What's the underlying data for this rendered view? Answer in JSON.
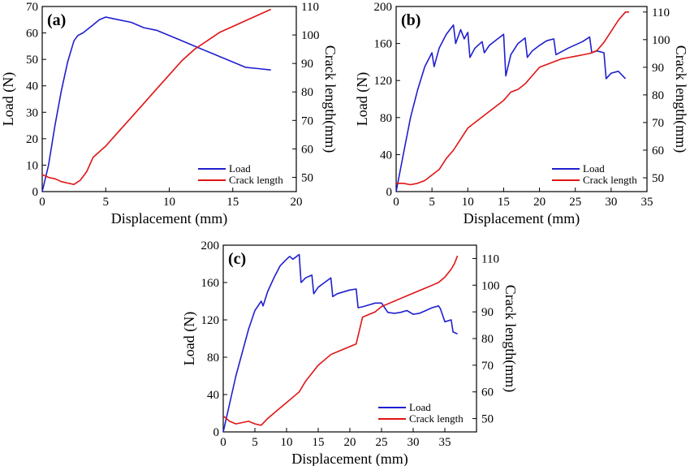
{
  "colors": {
    "load": "#1f1fcf",
    "crack": "#e01414",
    "axis": "#000000"
  },
  "chart_data": [
    {
      "panel": "(a)",
      "type": "line",
      "xlabel": "Displacement (mm)",
      "ylabel": "Load (N)",
      "y2label": "Crack length(mm)",
      "xlim": [
        0,
        20
      ],
      "xticks": [
        0,
        5,
        10,
        15,
        20
      ],
      "ylim": [
        0,
        70
      ],
      "yticks": [
        0,
        10,
        20,
        30,
        40,
        50,
        60,
        70
      ],
      "y2lim": [
        45,
        110
      ],
      "y2ticks": [
        50,
        60,
        70,
        80,
        90,
        100,
        110
      ],
      "legend": "bottom-right",
      "series": [
        {
          "name": "Load",
          "axis": "left",
          "color": "#1f1fcf",
          "x": [
            0,
            0.5,
            1,
            1.5,
            2,
            2.5,
            2.8,
            3.2,
            4,
            4.5,
            5,
            5.5,
            6,
            7,
            8,
            9,
            10,
            11,
            12,
            13,
            14,
            15,
            16,
            17,
            18
          ],
          "y": [
            0,
            10,
            25,
            38,
            49,
            57,
            59,
            60,
            63,
            65,
            66,
            65.5,
            65,
            64,
            62,
            61,
            59,
            57,
            55,
            53,
            51,
            49,
            47,
            46.5,
            46
          ]
        },
        {
          "name": "Crack length",
          "axis": "right",
          "color": "#e01414",
          "x": [
            0,
            0.5,
            1,
            1.5,
            2,
            2.5,
            3,
            3.5,
            4,
            5,
            6,
            7,
            8,
            9,
            10,
            11,
            12,
            13,
            14,
            15,
            16,
            17,
            18
          ],
          "y": [
            51,
            50,
            49.5,
            48.5,
            48,
            47.5,
            49,
            52,
            57,
            61,
            66,
            71,
            76,
            81,
            86,
            91,
            95,
            98,
            101,
            103,
            105,
            107,
            109
          ]
        }
      ]
    },
    {
      "panel": "(b)",
      "type": "line",
      "xlabel": "Displacement (mm)",
      "ylabel": "Load (N)",
      "y2label": "Crack length(mm)",
      "xlim": [
        0,
        35
      ],
      "xticks": [
        0,
        5,
        10,
        15,
        20,
        25,
        30,
        35
      ],
      "ylim": [
        0,
        200
      ],
      "yticks": [
        0,
        40,
        80,
        120,
        160,
        200
      ],
      "y2lim": [
        45,
        112
      ],
      "y2ticks": [
        50,
        60,
        70,
        80,
        90,
        100,
        110
      ],
      "legend": "bottom-right",
      "series": [
        {
          "name": "Load",
          "axis": "left",
          "color": "#1f1fcf",
          "x": [
            0,
            1,
            2,
            3,
            4,
            5,
            5.3,
            6,
            7,
            8,
            8.3,
            9,
            9.5,
            10,
            10.3,
            11,
            12,
            12.3,
            13,
            14,
            15,
            15.3,
            16,
            17,
            18,
            18.3,
            19,
            20,
            21,
            22,
            22.3,
            24,
            26,
            27,
            27.3,
            28,
            29,
            29.3,
            30,
            31,
            32
          ],
          "y": [
            0,
            40,
            80,
            110,
            135,
            150,
            135,
            155,
            170,
            180,
            160,
            175,
            165,
            172,
            145,
            155,
            162,
            150,
            158,
            164,
            170,
            125,
            148,
            160,
            166,
            145,
            152,
            158,
            163,
            165,
            148,
            155,
            162,
            167,
            150,
            152,
            150,
            122,
            128,
            130,
            122
          ]
        },
        {
          "name": "Crack length",
          "axis": "right",
          "color": "#e01414",
          "x": [
            0,
            1,
            2,
            3,
            4,
            5,
            6,
            7,
            8,
            9,
            10,
            11,
            12,
            13,
            14,
            15,
            16,
            17,
            18,
            19,
            20,
            21,
            22,
            23,
            24,
            25,
            26,
            27,
            28,
            29,
            30,
            31,
            32,
            32.5
          ],
          "y": [
            48,
            48,
            47.5,
            48,
            49,
            51,
            53,
            57,
            60,
            64,
            68,
            70,
            72,
            74,
            76,
            78,
            81,
            82,
            84,
            87,
            90,
            91,
            92,
            93,
            93.5,
            94,
            94.5,
            95,
            96,
            99,
            103,
            107,
            110,
            110
          ]
        }
      ]
    },
    {
      "panel": "(c)",
      "type": "line",
      "xlabel": "Displacement (mm)",
      "ylabel": "Load (N)",
      "y2label": "Crack length(mm)",
      "xlim": [
        0,
        40
      ],
      "xticks": [
        0,
        5,
        10,
        15,
        20,
        25,
        30,
        35
      ],
      "ylim": [
        0,
        200
      ],
      "yticks": [
        0,
        40,
        80,
        120,
        160,
        200
      ],
      "y2lim": [
        45,
        115
      ],
      "y2ticks": [
        50,
        60,
        70,
        80,
        90,
        100,
        110
      ],
      "legend": "bottom-right",
      "series": [
        {
          "name": "Load",
          "axis": "left",
          "color": "#1f1fcf",
          "x": [
            0,
            1,
            2,
            3,
            4,
            5,
            6,
            6.3,
            7,
            8,
            9,
            10,
            10.5,
            11,
            12,
            12.3,
            13,
            14,
            14.3,
            15,
            16,
            17,
            17.3,
            18,
            20,
            21,
            21.3,
            22,
            23,
            24,
            25,
            26,
            27,
            28,
            29,
            30,
            31,
            32,
            33,
            34,
            34.3,
            35,
            36,
            36.3,
            37
          ],
          "y": [
            0,
            30,
            60,
            85,
            110,
            130,
            140,
            135,
            150,
            165,
            178,
            185,
            188,
            185,
            190,
            160,
            165,
            168,
            148,
            155,
            160,
            165,
            145,
            148,
            152,
            153,
            133,
            134,
            136,
            138,
            138,
            128,
            127,
            128,
            130,
            126,
            127,
            130,
            133,
            135,
            132,
            118,
            120,
            107,
            105
          ]
        },
        {
          "name": "Crack length",
          "axis": "right",
          "color": "#e01414",
          "x": [
            0,
            1,
            2,
            3,
            4,
            5,
            6,
            7,
            8,
            9,
            10,
            11,
            12,
            13,
            14,
            15,
            16,
            17,
            18,
            19,
            20,
            21,
            22,
            23,
            24,
            25,
            26,
            27,
            28,
            29,
            30,
            31,
            32,
            33,
            34,
            35,
            36,
            36.5,
            37
          ],
          "y": [
            51,
            49,
            48,
            48.5,
            49,
            48,
            47.5,
            50,
            52,
            54,
            56,
            58,
            60,
            64,
            67,
            70,
            72,
            74,
            75,
            76,
            77,
            78,
            88,
            89,
            90,
            92,
            93,
            94,
            95,
            96,
            97,
            98,
            99,
            100,
            101,
            103,
            106,
            108,
            111
          ]
        }
      ]
    }
  ]
}
